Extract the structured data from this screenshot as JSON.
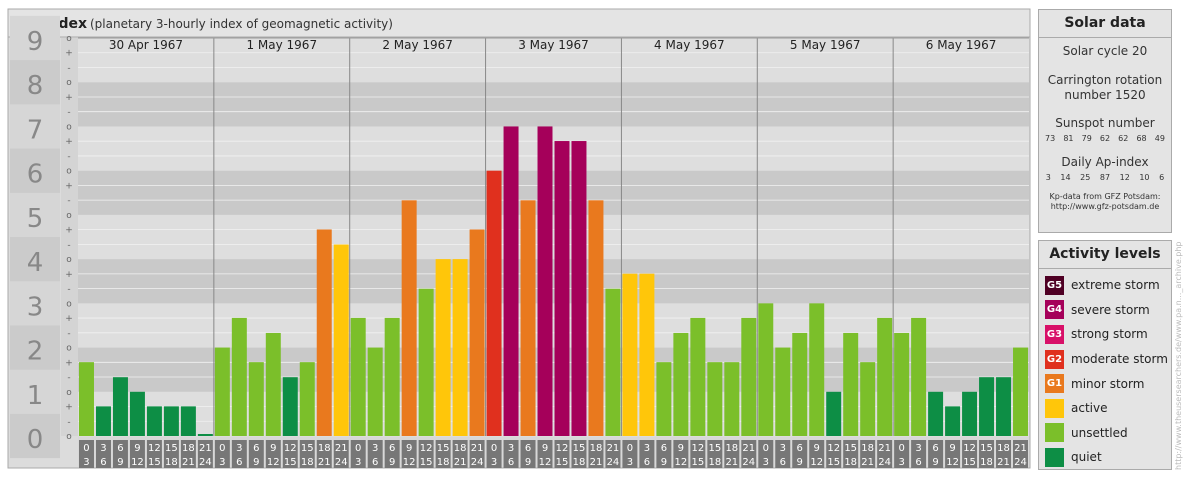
{
  "header": {
    "title": "Kp-index",
    "subtitle": "(planetary 3-hourly index of geomagnetic activity)"
  },
  "colors": {
    "quiet": "#0d8e45",
    "unsettled": "#7bbf2a",
    "active": "#ffc60a",
    "minor_storm": "#e9791e",
    "moderate_storm": "#e0301e",
    "strong_storm": "#d81068",
    "severe_storm": "#a5005a",
    "extreme_storm": "#4f0024"
  },
  "chart_data": {
    "type": "bar",
    "ylim": [
      0,
      9
    ],
    "yticks": [
      "0",
      "1",
      "2",
      "3",
      "4",
      "5",
      "6",
      "7",
      "8",
      "9"
    ],
    "subticks": [
      "-",
      "+",
      "o"
    ],
    "days": [
      "30 Apr 1967",
      "1 May 1967",
      "2 May 1967",
      "3 May 1967",
      "4 May 1967",
      "5 May 1967",
      "6 May 1967"
    ],
    "interval_starts": [
      "0",
      "3",
      "6",
      "9",
      "12",
      "15",
      "18",
      "21"
    ],
    "interval_ends": [
      "3",
      "6",
      "9",
      "12",
      "15",
      "18",
      "21",
      "24"
    ],
    "values": [
      [
        1.67,
        0.67,
        1.33,
        1.0,
        0.67,
        0.67,
        0.67,
        0.0
      ],
      [
        2.0,
        2.67,
        1.67,
        2.33,
        1.33,
        1.67,
        4.67,
        4.33
      ],
      [
        2.67,
        2.0,
        2.67,
        5.33,
        3.33,
        4.0,
        4.0,
        4.67
      ],
      [
        6.0,
        7.0,
        5.33,
        7.0,
        6.67,
        6.67,
        5.33,
        3.33
      ],
      [
        3.67,
        3.67,
        1.67,
        2.33,
        2.67,
        1.67,
        1.67,
        2.67
      ],
      [
        3.0,
        2.0,
        2.33,
        3.0,
        1.0,
        2.33,
        1.67,
        2.67
      ],
      [
        2.33,
        2.67,
        1.0,
        0.67,
        1.0,
        1.33,
        1.33,
        2.0
      ]
    ]
  },
  "solar": {
    "title": "Solar data",
    "cycle": "Solar cycle 20",
    "carrington_line1": "Carrington rotation",
    "carrington_line2": "number 1520",
    "sunspot_label": "Sunspot number",
    "sunspot_numbers": [
      "73",
      "81",
      "79",
      "62",
      "62",
      "68",
      "49"
    ],
    "ap_label": "Daily Ap-index",
    "ap_values": [
      "3",
      "14",
      "25",
      "87",
      "12",
      "10",
      "6"
    ],
    "source_line1": "Kp-data from GFZ Potsdam:",
    "source_line2": "http://www.gfz-potsdam.de"
  },
  "activity": {
    "title": "Activity levels",
    "levels": [
      {
        "badge": "G5",
        "label": "extreme storm",
        "color": "#4f0024"
      },
      {
        "badge": "G4",
        "label": "severe storm",
        "color": "#a5005a"
      },
      {
        "badge": "G3",
        "label": "strong storm",
        "color": "#d81068"
      },
      {
        "badge": "G2",
        "label": "moderate storm",
        "color": "#e0301e"
      },
      {
        "badge": "G1",
        "label": "minor storm",
        "color": "#e9791e"
      },
      {
        "badge": "",
        "label": "active",
        "color": "#ffc60a"
      },
      {
        "badge": "",
        "label": "unsettled",
        "color": "#7bbf2a"
      },
      {
        "badge": "",
        "label": "quiet",
        "color": "#0d8e45"
      }
    ]
  },
  "watermark": "http://www.theusersearchers.de/www.pa.n..._archive.php"
}
